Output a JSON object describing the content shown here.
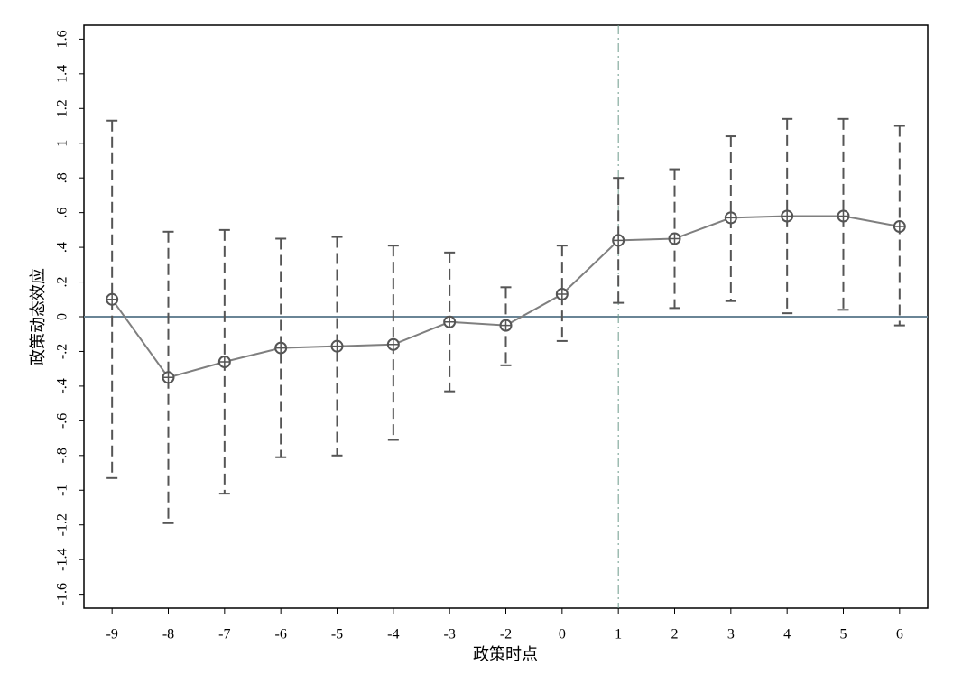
{
  "chart_data": {
    "type": "line",
    "y_label": "政策动态效应",
    "x_label": "政策时点",
    "categories": [
      "-9",
      "-8",
      "-7",
      "-6",
      "-5",
      "-4",
      "-3",
      "-2",
      "0",
      "1",
      "2",
      "3",
      "4",
      "5",
      "6"
    ],
    "values": [
      0.1,
      -0.35,
      -0.26,
      -0.18,
      -0.17,
      -0.16,
      -0.03,
      -0.05,
      0.13,
      0.44,
      0.45,
      0.57,
      0.58,
      0.58,
      0.52
    ],
    "ci_upper": [
      1.13,
      0.49,
      0.5,
      0.45,
      0.46,
      0.41,
      0.37,
      0.17,
      0.41,
      0.8,
      0.85,
      1.04,
      1.14,
      1.14,
      1.1
    ],
    "ci_lower": [
      -0.93,
      -1.19,
      -1.02,
      -0.81,
      -0.8,
      -0.71,
      -0.43,
      -0.28,
      -0.14,
      0.08,
      0.05,
      0.09,
      0.02,
      0.04,
      -0.05
    ],
    "color": "#7f7f7f",
    "ci_color": "#555555",
    "hline": 0,
    "hline_color": "#6a8596",
    "vline": "1",
    "vline_color": "#6d9a8c",
    "ylim": [
      -1.68,
      1.68
    ],
    "yticks": [
      {
        "value": -1.6,
        "label": "-1.6"
      },
      {
        "value": -1.4,
        "label": "-1.4"
      },
      {
        "value": -1.2,
        "label": "-1.2"
      },
      -1,
      {
        "value": -0.8,
        "label": "-.8"
      },
      {
        "value": -0.6,
        "label": "-.6"
      },
      {
        "value": -0.4,
        "label": "-.4"
      },
      {
        "value": -0.2,
        "label": "-.2"
      },
      0,
      {
        "value": 0.2,
        "label": ".2"
      },
      {
        "value": 0.4,
        "label": ".4"
      },
      {
        "value": 0.6,
        "label": ".6"
      },
      {
        "value": 0.8,
        "label": ".8"
      },
      1,
      {
        "value": 1.2,
        "label": "1.2"
      },
      {
        "value": 1.4,
        "label": "1.4"
      },
      {
        "value": 1.6,
        "label": "1.6"
      }
    ]
  }
}
